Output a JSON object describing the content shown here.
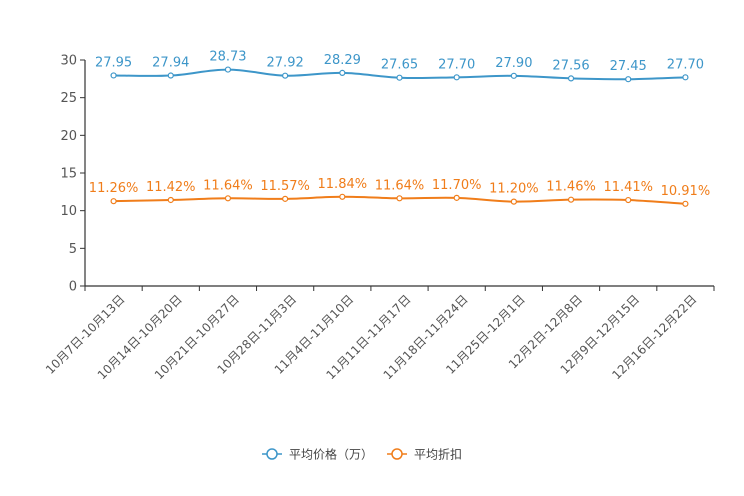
{
  "chart_data": {
    "type": "line",
    "title": "",
    "xlabel": "",
    "ylabel": "",
    "ylim": [
      0,
      30
    ],
    "yticks": [
      0,
      5,
      10,
      15,
      20,
      25,
      30
    ],
    "grid": false,
    "legend_position": "bottom-center",
    "categories": [
      "10月7日-10月13日",
      "10月14日-10月20日",
      "10月21日-10月27日",
      "10月28日-11月3日",
      "11月4日-11月10日",
      "11月11日-11月17日",
      "11月18日-11月24日",
      "11月25日-12月1日",
      "12月2日-12月8日",
      "12月9日-12月15日",
      "12月16日-12月22日"
    ],
    "series": [
      {
        "name": "平均价格（万）",
        "color": "#3d96c9",
        "values": [
          27.95,
          27.94,
          28.73,
          27.92,
          28.29,
          27.65,
          27.7,
          27.9,
          27.56,
          27.45,
          27.7
        ],
        "labels": [
          "27.95",
          "27.94",
          "28.73",
          "27.92",
          "28.29",
          "27.65",
          "27.70",
          "27.90",
          "27.56",
          "27.45",
          "27.70"
        ]
      },
      {
        "name": "平均折扣",
        "color": "#f07d1a",
        "values": [
          11.26,
          11.42,
          11.64,
          11.57,
          11.84,
          11.64,
          11.7,
          11.2,
          11.46,
          11.41,
          10.91
        ],
        "labels": [
          "11.26%",
          "11.42%",
          "11.64%",
          "11.57%",
          "11.84%",
          "11.64%",
          "11.70%",
          "11.20%",
          "11.46%",
          "11.41%",
          "10.91%"
        ]
      }
    ]
  }
}
